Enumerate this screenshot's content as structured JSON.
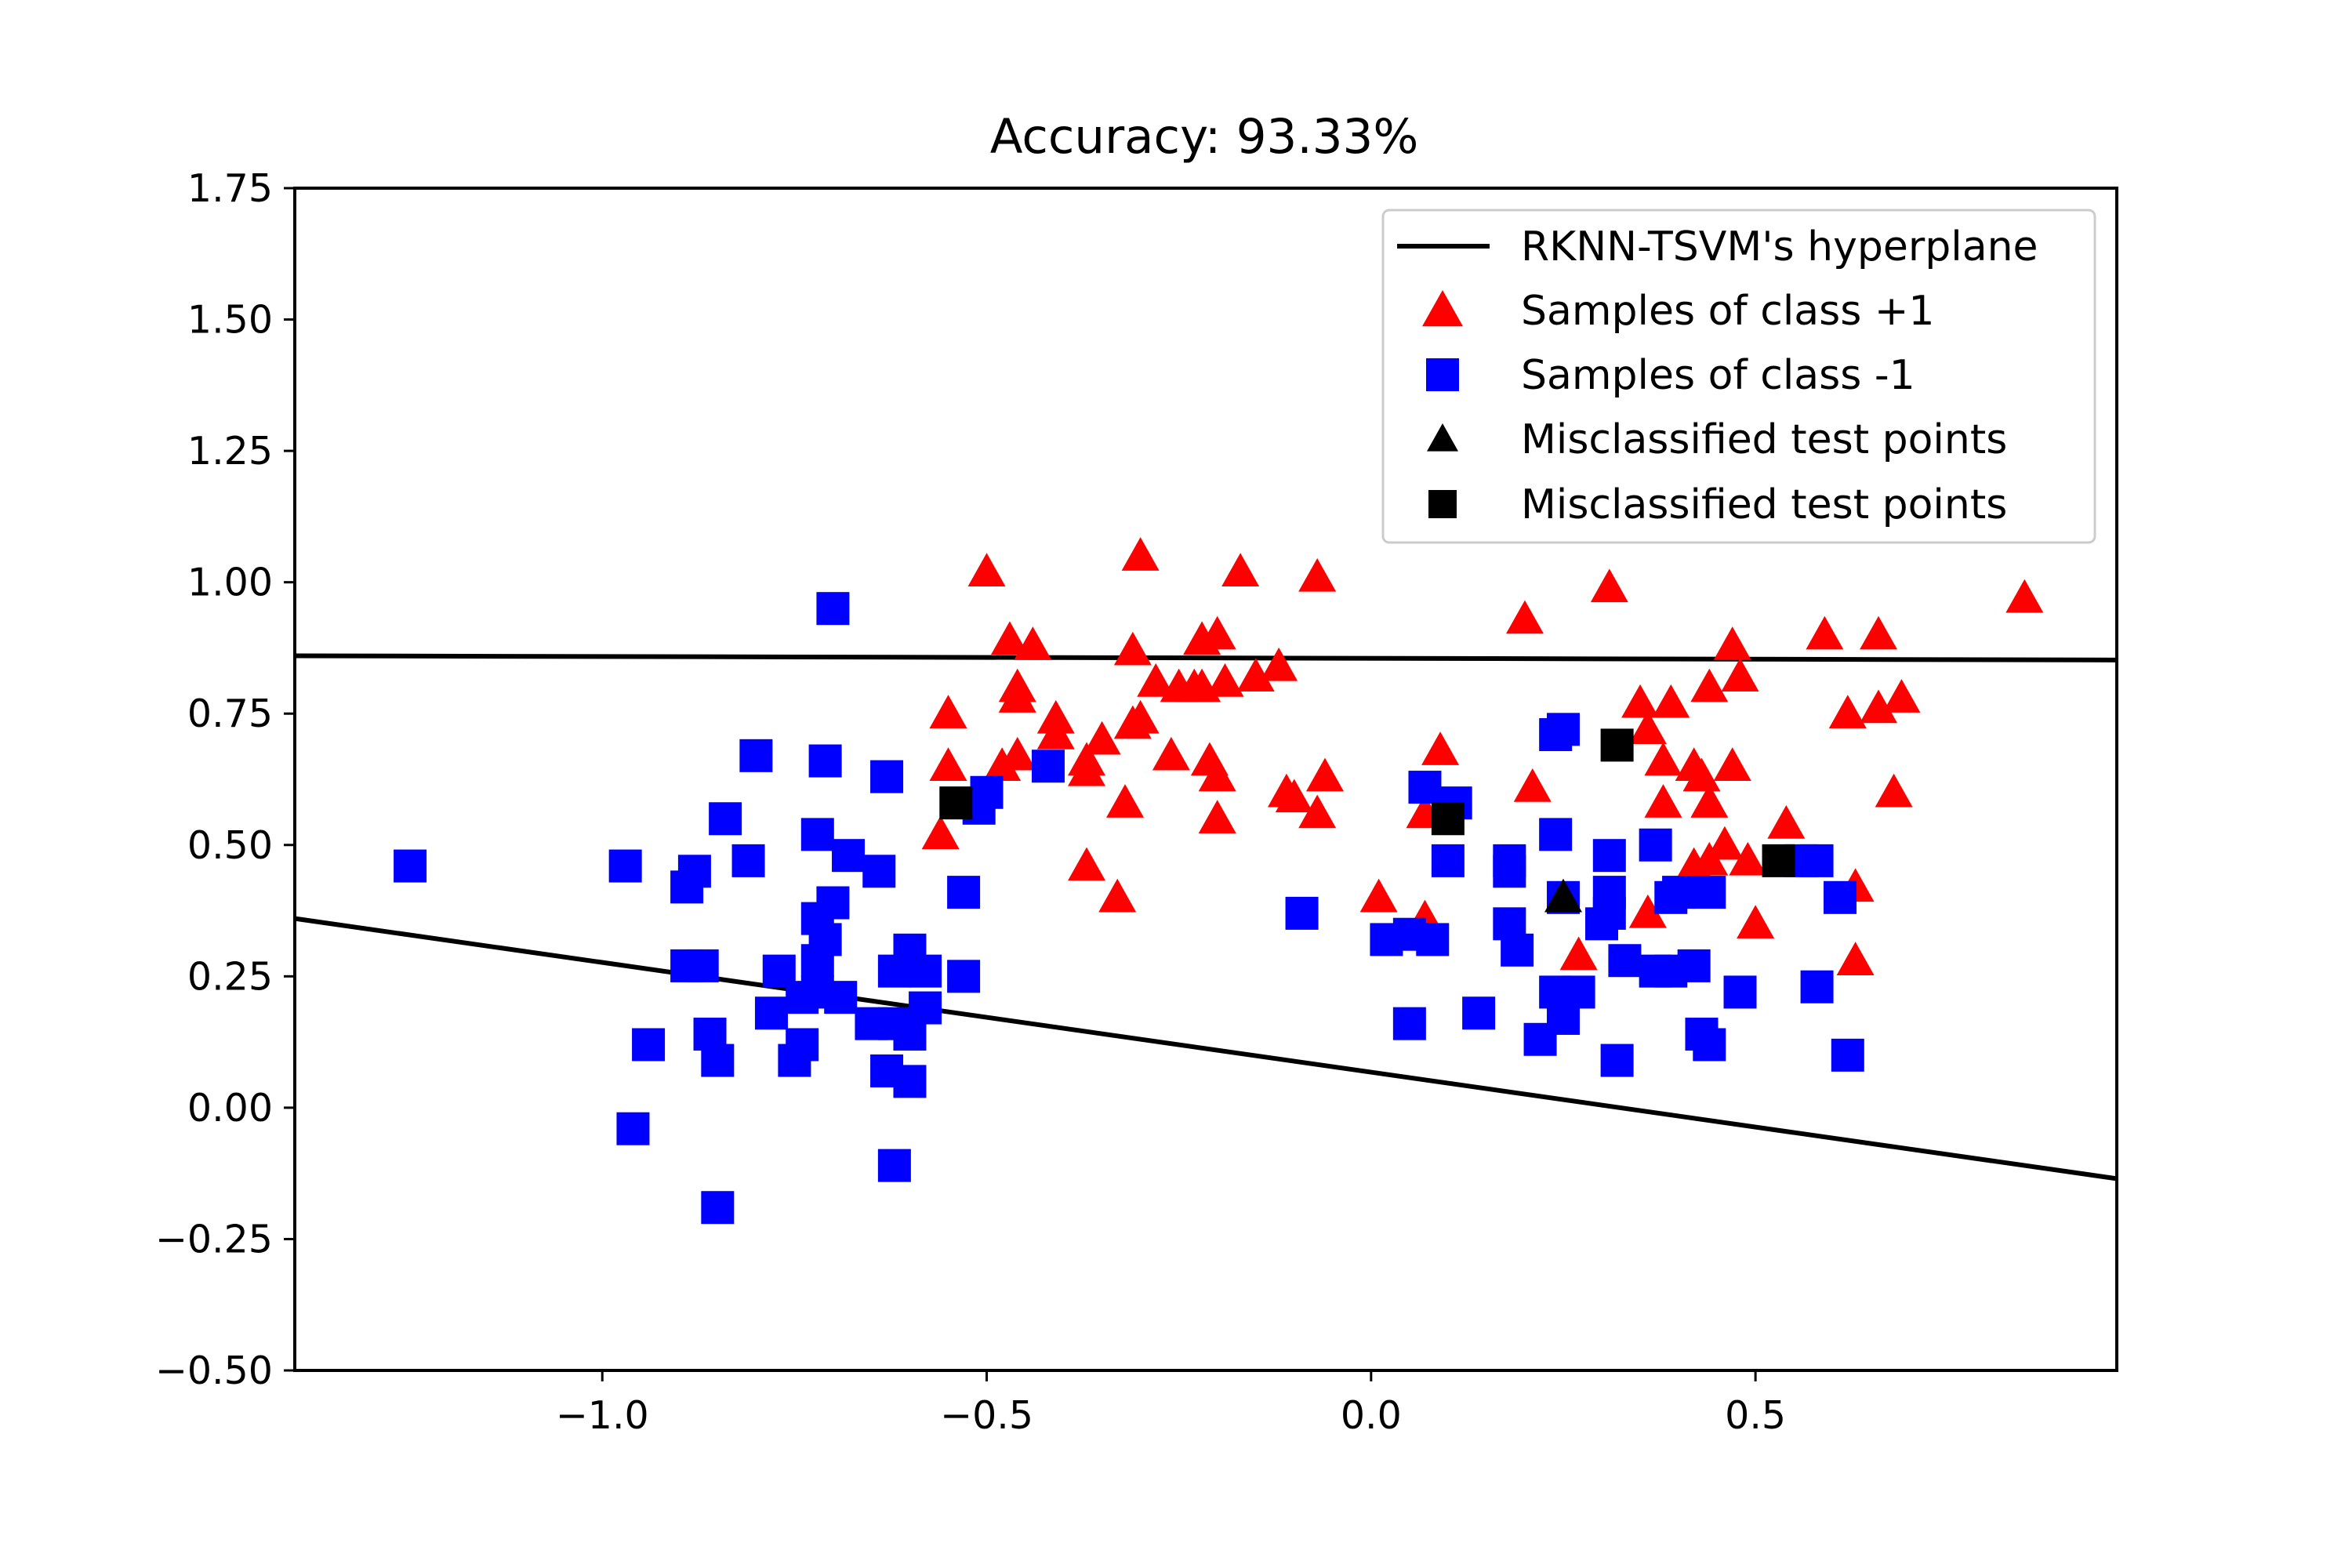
{
  "chart_data": {
    "type": "scatter",
    "title": "Accuracy: 93.33%",
    "xlabel": "",
    "ylabel": "",
    "xlim": [
      -1.4,
      0.97
    ],
    "ylim": [
      -0.5,
      1.75
    ],
    "x_ticks": [
      -1.0,
      -0.5,
      0.0,
      0.5
    ],
    "x_tick_labels": [
      "−1.0",
      "−0.5",
      "0.0",
      "0.5"
    ],
    "y_ticks": [
      -0.5,
      -0.25,
      0.0,
      0.25,
      0.5,
      0.75,
      1.0,
      1.25,
      1.5,
      1.75
    ],
    "y_tick_labels": [
      "−0.50",
      "−0.25",
      "0.00",
      "0.25",
      "0.50",
      "0.75",
      "1.00",
      "1.25",
      "1.50",
      "1.75"
    ],
    "grid": false,
    "legend_position": "top-right",
    "colors": {
      "class_pos": "#ff0000",
      "class_neg": "#0000ff",
      "misclassified": "#000000",
      "hyperplane": "#000000"
    },
    "legend": [
      {
        "label": "RKNN-TSVM's hyperplane",
        "marker": "line",
        "color": "#000000"
      },
      {
        "label": "Samples of class +1",
        "marker": "triangle",
        "color": "#ff0000"
      },
      {
        "label": "Samples of class -1",
        "marker": "square",
        "color": "#0000ff"
      },
      {
        "label": "Misclassified test points",
        "marker": "triangle",
        "color": "#000000"
      },
      {
        "label": "Misclassified test points",
        "marker": "square",
        "color": "#000000"
      }
    ],
    "hyperplanes": [
      {
        "name": "hyperplane-upper",
        "points": [
          [
            -1.4,
            0.86
          ],
          [
            0.97,
            0.852
          ]
        ]
      },
      {
        "name": "hyperplane-lower",
        "points": [
          [
            -1.4,
            0.36
          ],
          [
            0.97,
            -0.135
          ]
        ]
      }
    ],
    "series": [
      {
        "name": "Samples of class +1",
        "marker": "triangle",
        "color": "#ff0000",
        "points": [
          [
            -0.5,
            1.02
          ],
          [
            -0.3,
            1.05
          ],
          [
            -0.17,
            1.02
          ],
          [
            -0.07,
            1.01
          ],
          [
            0.31,
            0.99
          ],
          [
            0.85,
            0.97
          ],
          [
            0.2,
            0.93
          ],
          [
            -0.47,
            0.89
          ],
          [
            -0.44,
            0.88
          ],
          [
            -0.22,
            0.89
          ],
          [
            -0.2,
            0.9
          ],
          [
            -0.31,
            0.87
          ],
          [
            0.59,
            0.9
          ],
          [
            0.66,
            0.9
          ],
          [
            0.47,
            0.88
          ],
          [
            -0.46,
            0.8
          ],
          [
            -0.46,
            0.78
          ],
          [
            -0.28,
            0.81
          ],
          [
            -0.25,
            0.8
          ],
          [
            -0.23,
            0.8
          ],
          [
            -0.22,
            0.8
          ],
          [
            -0.19,
            0.81
          ],
          [
            -0.15,
            0.82
          ],
          [
            -0.12,
            0.84
          ],
          [
            0.44,
            0.8
          ],
          [
            0.48,
            0.82
          ],
          [
            0.35,
            0.77
          ],
          [
            0.39,
            0.77
          ],
          [
            0.62,
            0.75
          ],
          [
            0.66,
            0.76
          ],
          [
            0.69,
            0.78
          ],
          [
            -0.55,
            0.75
          ],
          [
            -0.41,
            0.74
          ],
          [
            -0.41,
            0.71
          ],
          [
            -0.35,
            0.7
          ],
          [
            -0.3,
            0.74
          ],
          [
            -0.31,
            0.73
          ],
          [
            -0.26,
            0.67
          ],
          [
            -0.21,
            0.66
          ],
          [
            -0.37,
            0.66
          ],
          [
            -0.37,
            0.64
          ],
          [
            -0.46,
            0.67
          ],
          [
            -0.48,
            0.65
          ],
          [
            -0.55,
            0.65
          ],
          [
            -0.2,
            0.63
          ],
          [
            -0.11,
            0.6
          ],
          [
            -0.1,
            0.59
          ],
          [
            -0.06,
            0.63
          ],
          [
            0.09,
            0.68
          ],
          [
            0.21,
            0.61
          ],
          [
            0.36,
            0.72
          ],
          [
            0.38,
            0.66
          ],
          [
            0.42,
            0.65
          ],
          [
            0.43,
            0.63
          ],
          [
            0.47,
            0.65
          ],
          [
            0.68,
            0.6
          ],
          [
            0.38,
            0.58
          ],
          [
            0.44,
            0.58
          ],
          [
            0.46,
            0.5
          ],
          [
            0.54,
            0.54
          ],
          [
            -0.56,
            0.52
          ],
          [
            -0.32,
            0.58
          ],
          [
            -0.2,
            0.55
          ],
          [
            -0.07,
            0.56
          ],
          [
            0.07,
            0.56
          ],
          [
            0.42,
            0.46
          ],
          [
            0.44,
            0.47
          ],
          [
            0.49,
            0.47
          ],
          [
            -0.37,
            0.46
          ],
          [
            -0.33,
            0.4
          ],
          [
            0.01,
            0.4
          ],
          [
            0.07,
            0.36
          ],
          [
            0.36,
            0.37
          ],
          [
            0.5,
            0.35
          ],
          [
            0.63,
            0.42
          ],
          [
            0.27,
            0.29
          ],
          [
            0.63,
            0.28
          ]
        ]
      },
      {
        "name": "Samples of class -1",
        "marker": "square",
        "color": "#0000ff",
        "points": [
          [
            -0.7,
            0.95
          ],
          [
            -0.8,
            0.67
          ],
          [
            -0.71,
            0.66
          ],
          [
            -0.63,
            0.63
          ],
          [
            -0.42,
            0.65
          ],
          [
            -0.5,
            0.6
          ],
          [
            -0.51,
            0.57
          ],
          [
            -1.25,
            0.46
          ],
          [
            -0.97,
            0.46
          ],
          [
            -0.88,
            0.45
          ],
          [
            -0.89,
            0.42
          ],
          [
            -0.84,
            0.55
          ],
          [
            -0.81,
            0.47
          ],
          [
            -0.72,
            0.52
          ],
          [
            -0.68,
            0.48
          ],
          [
            -0.64,
            0.45
          ],
          [
            -0.53,
            0.41
          ],
          [
            -0.7,
            0.39
          ],
          [
            -0.72,
            0.36
          ],
          [
            -0.71,
            0.32
          ],
          [
            -0.89,
            0.27
          ],
          [
            -0.87,
            0.27
          ],
          [
            -0.77,
            0.26
          ],
          [
            -0.72,
            0.28
          ],
          [
            -0.6,
            0.3
          ],
          [
            -0.62,
            0.26
          ],
          [
            -0.58,
            0.26
          ],
          [
            -0.53,
            0.25
          ],
          [
            -0.72,
            0.22
          ],
          [
            -0.69,
            0.21
          ],
          [
            -0.78,
            0.18
          ],
          [
            -0.74,
            0.21
          ],
          [
            -0.65,
            0.16
          ],
          [
            -0.62,
            0.16
          ],
          [
            -0.6,
            0.14
          ],
          [
            -0.58,
            0.19
          ],
          [
            -0.94,
            0.12
          ],
          [
            -0.86,
            0.14
          ],
          [
            -0.85,
            0.09
          ],
          [
            -0.75,
            0.09
          ],
          [
            -0.74,
            0.12
          ],
          [
            -0.63,
            0.07
          ],
          [
            -0.6,
            0.05
          ],
          [
            -0.96,
            -0.04
          ],
          [
            -0.62,
            -0.11
          ],
          [
            -0.85,
            -0.19
          ],
          [
            -0.09,
            0.37
          ],
          [
            0.02,
            0.32
          ],
          [
            0.05,
            0.33
          ],
          [
            0.08,
            0.32
          ],
          [
            0.07,
            0.61
          ],
          [
            0.11,
            0.58
          ],
          [
            0.1,
            0.47
          ],
          [
            0.18,
            0.45
          ],
          [
            0.18,
            0.47
          ],
          [
            0.24,
            0.71
          ],
          [
            0.25,
            0.72
          ],
          [
            0.24,
            0.52
          ],
          [
            0.31,
            0.48
          ],
          [
            0.37,
            0.5
          ],
          [
            0.18,
            0.35
          ],
          [
            0.19,
            0.3
          ],
          [
            0.25,
            0.4
          ],
          [
            0.3,
            0.35
          ],
          [
            0.31,
            0.37
          ],
          [
            0.31,
            0.41
          ],
          [
            0.33,
            0.28
          ],
          [
            0.37,
            0.26
          ],
          [
            0.39,
            0.26
          ],
          [
            0.42,
            0.27
          ],
          [
            0.39,
            0.4
          ],
          [
            0.4,
            0.41
          ],
          [
            0.44,
            0.41
          ],
          [
            0.56,
            0.47
          ],
          [
            0.58,
            0.47
          ],
          [
            0.61,
            0.4
          ],
          [
            0.24,
            0.22
          ],
          [
            0.27,
            0.22
          ],
          [
            0.25,
            0.17
          ],
          [
            0.22,
            0.13
          ],
          [
            0.05,
            0.16
          ],
          [
            0.14,
            0.18
          ],
          [
            0.32,
            0.09
          ],
          [
            0.43,
            0.14
          ],
          [
            0.44,
            0.12
          ],
          [
            0.48,
            0.22
          ],
          [
            0.58,
            0.23
          ],
          [
            0.62,
            0.1
          ]
        ]
      },
      {
        "name": "Misclassified test points",
        "marker": "triangle",
        "color": "#000000",
        "points": [
          [
            0.25,
            0.4
          ]
        ]
      },
      {
        "name": "Misclassified test points",
        "marker": "square",
        "color": "#000000",
        "points": [
          [
            -0.54,
            0.58
          ],
          [
            0.1,
            0.55
          ],
          [
            0.32,
            0.69
          ],
          [
            0.53,
            0.47
          ]
        ]
      }
    ]
  }
}
